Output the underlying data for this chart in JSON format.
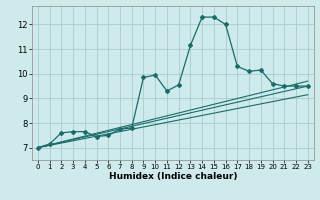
{
  "title": "",
  "xlabel": "Humidex (Indice chaleur)",
  "background_color": "#ceeaea",
  "grid_color": "#aacccc",
  "line_color": "#1a6b6b",
  "xlim": [
    -0.5,
    23.5
  ],
  "ylim": [
    6.5,
    12.75
  ],
  "yticks": [
    7,
    8,
    9,
    10,
    11,
    12
  ],
  "xticks": [
    0,
    1,
    2,
    3,
    4,
    5,
    6,
    7,
    8,
    9,
    10,
    11,
    12,
    13,
    14,
    15,
    16,
    17,
    18,
    19,
    20,
    21,
    22,
    23
  ],
  "line1_x": [
    0,
    1,
    2,
    3,
    4,
    5,
    6,
    7,
    8,
    9,
    10,
    11,
    12,
    13,
    14,
    15,
    16,
    17,
    18,
    19,
    20,
    21,
    22,
    23
  ],
  "line1_y": [
    7.0,
    7.15,
    7.6,
    7.65,
    7.65,
    7.45,
    7.5,
    7.75,
    7.8,
    9.85,
    9.95,
    9.3,
    9.55,
    11.15,
    12.3,
    12.3,
    12.0,
    10.3,
    10.1,
    10.15,
    9.6,
    9.5,
    9.5,
    9.5
  ],
  "line2_x": [
    0,
    23
  ],
  "line2_y": [
    7.0,
    9.5
  ],
  "line3_x": [
    0,
    23
  ],
  "line3_y": [
    7.0,
    9.7
  ],
  "line4_x": [
    0,
    23
  ],
  "line4_y": [
    7.0,
    9.15
  ]
}
